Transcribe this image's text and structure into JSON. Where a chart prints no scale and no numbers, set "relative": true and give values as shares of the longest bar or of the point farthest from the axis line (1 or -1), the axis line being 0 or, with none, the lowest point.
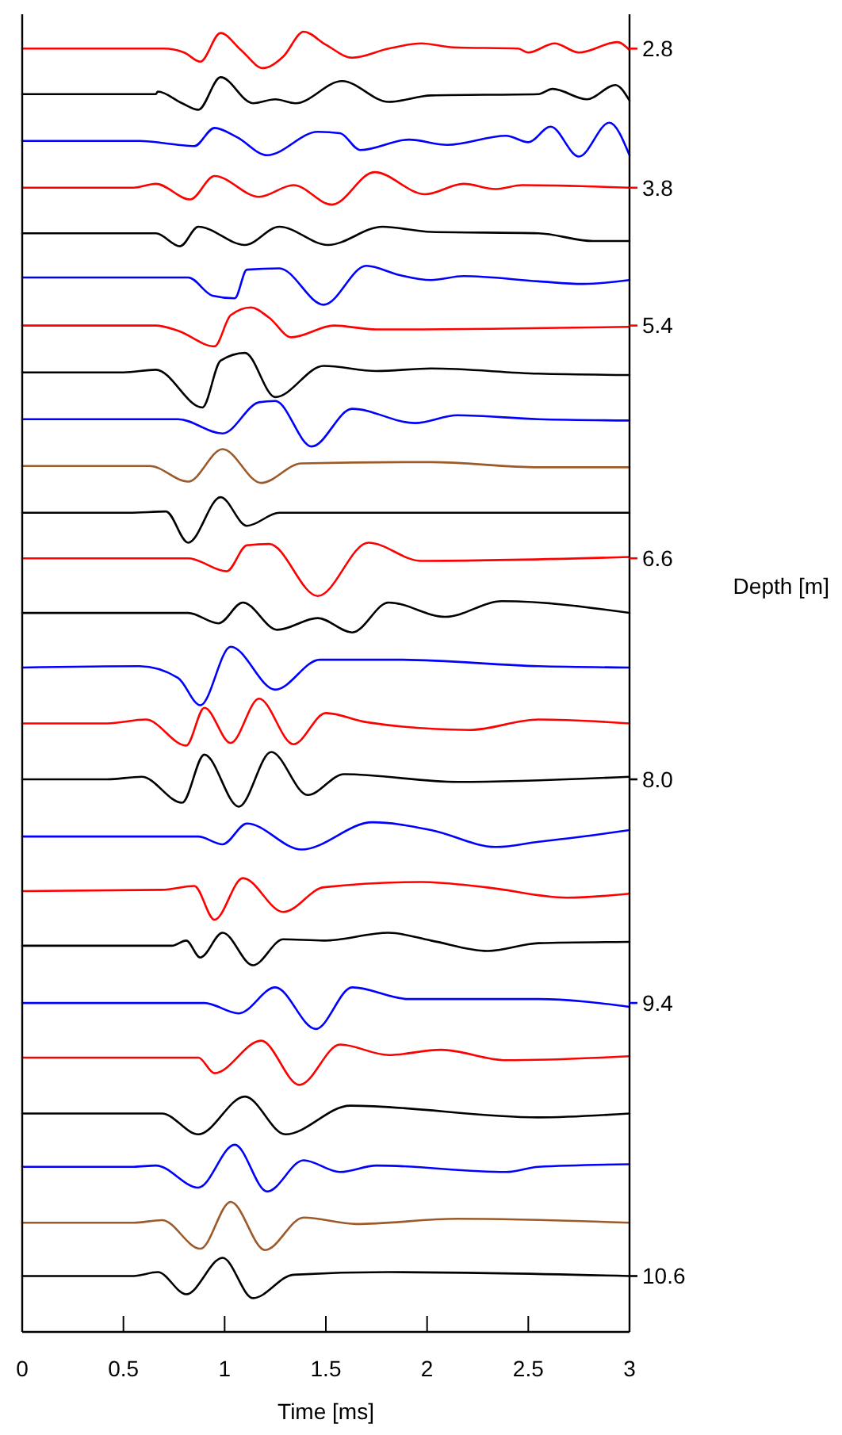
{
  "chart_data": {
    "type": "line",
    "relative": true,
    "xlabel": "Time [ms]",
    "legend_title": "Depth [m]",
    "xlim": [
      0,
      3
    ],
    "xticks": [
      0,
      0.5,
      1,
      1.5,
      2,
      2.5,
      3
    ],
    "grid": false,
    "legend": "right",
    "marker": "none",
    "line_style": "solid",
    "series": [
      {
        "name": "2.8",
        "color": "#ff0000",
        "x": [
          0,
          0.7,
          0.8,
          0.88,
          0.98,
          1.08,
          1.19,
          1.29,
          1.39,
          1.5,
          1.63,
          1.81,
          1.97,
          2.13,
          2.45,
          2.5,
          2.63,
          2.75,
          2.94,
          3.0
        ],
        "values": [
          0.987,
          0.987,
          0.984,
          0.977,
          0.999,
          0.986,
          0.972,
          0.981,
          1,
          0.99,
          0.98,
          0.987,
          0.991,
          0.988,
          0.987,
          0.984,
          0.991,
          0.984,
          0.992,
          0.986
        ]
      },
      {
        "color": "#000000",
        "x": [
          0,
          0.66,
          0.67,
          0.79,
          0.87,
          0.98,
          1.14,
          1.25,
          1.35,
          1.58,
          1.81,
          2.02,
          2.55,
          2.62,
          2.79,
          2.93,
          3.0
        ],
        "values": [
          0.952,
          0.952,
          0.954,
          0.945,
          0.94,
          0.965,
          0.945,
          0.948,
          0.945,
          0.962,
          0.946,
          0.951,
          0.952,
          0.956,
          0.948,
          0.959,
          0.947
        ]
      },
      {
        "color": "#0000ff",
        "x": [
          0,
          0.58,
          0.77,
          0.85,
          0.95,
          1.06,
          1.21,
          1.46,
          1.57,
          1.67,
          1.91,
          2.1,
          2.39,
          2.5,
          2.61,
          2.75,
          2.9,
          3.0
        ],
        "values": [
          0.916,
          0.916,
          0.913,
          0.912,
          0.926,
          0.919,
          0.905,
          0.923,
          0.922,
          0.909,
          0.917,
          0.913,
          0.92,
          0.915,
          0.927,
          0.904,
          0.93,
          0.905
        ]
      },
      {
        "name": "3.8",
        "color": "#ff0000",
        "x": [
          0,
          0.55,
          0.66,
          0.83,
          0.95,
          1.17,
          1.34,
          1.53,
          1.74,
          1.99,
          2.18,
          2.34,
          2.47,
          3.0
        ],
        "values": [
          0.88,
          0.88,
          0.883,
          0.871,
          0.889,
          0.873,
          0.882,
          0.867,
          0.892,
          0.875,
          0.883,
          0.879,
          0.882,
          0.88
        ]
      },
      {
        "color": "#000000",
        "x": [
          0,
          0.66,
          0.78,
          0.87,
          1.1,
          1.27,
          1.51,
          1.78,
          2.02,
          2.55,
          2.82,
          3.0
        ],
        "values": [
          0.845,
          0.845,
          0.835,
          0.85,
          0.836,
          0.85,
          0.836,
          0.85,
          0.846,
          0.845,
          0.839,
          0.839
        ]
      },
      {
        "color": "#0000ff",
        "x": [
          0,
          0.82,
          0.94,
          1.05,
          1.11,
          1.27,
          1.49,
          1.7,
          1.86,
          2.02,
          2.18,
          2.55,
          2.77,
          3.0
        ],
        "values": [
          0.811,
          0.811,
          0.797,
          0.795,
          0.817,
          0.818,
          0.79,
          0.82,
          0.813,
          0.809,
          0.812,
          0.808,
          0.806,
          0.809
        ]
      },
      {
        "name": "5.4",
        "color": "#ff0000",
        "x": [
          0,
          0.66,
          0.77,
          0.95,
          1.03,
          1.13,
          1.22,
          1.33,
          1.54,
          1.75,
          3.0
        ],
        "values": [
          0.774,
          0.774,
          0.77,
          0.758,
          0.782,
          0.788,
          0.78,
          0.765,
          0.774,
          0.771,
          0.773
        ]
      },
      {
        "color": "#000000",
        "x": [
          0,
          0.5,
          0.66,
          0.89,
          0.98,
          1.1,
          1.25,
          1.49,
          1.75,
          2.02,
          2.55,
          3.0
        ],
        "values": [
          0.738,
          0.738,
          0.74,
          0.711,
          0.747,
          0.753,
          0.719,
          0.743,
          0.739,
          0.741,
          0.737,
          0.736
        ]
      },
      {
        "color": "#0000ff",
        "x": [
          0,
          0.77,
          0.99,
          1.17,
          1.25,
          1.43,
          1.63,
          1.94,
          2.15,
          2.55,
          3.0
        ],
        "values": [
          0.702,
          0.702,
          0.691,
          0.715,
          0.716,
          0.681,
          0.71,
          0.699,
          0.705,
          0.702,
          0.701
        ]
      },
      {
        "color": "#9c5a2a",
        "x": [
          0,
          0.63,
          0.82,
          0.99,
          1.18,
          1.38,
          2.02,
          2.55,
          3.0
        ],
        "values": [
          0.666,
          0.666,
          0.654,
          0.679,
          0.653,
          0.668,
          0.669,
          0.665,
          0.665
        ]
      },
      {
        "color": "#000000",
        "x": [
          0,
          0.53,
          0.71,
          0.82,
          0.98,
          1.11,
          1.27,
          3.0
        ],
        "values": [
          0.63,
          0.63,
          0.631,
          0.607,
          0.642,
          0.62,
          0.63,
          0.63
        ]
      },
      {
        "name": "6.6",
        "color": "#ff0000",
        "x": [
          0,
          0.82,
          1.01,
          1.11,
          1.22,
          1.46,
          1.71,
          1.97,
          3.0
        ],
        "values": [
          0.595,
          0.595,
          0.585,
          0.605,
          0.606,
          0.566,
          0.607,
          0.593,
          0.596
        ]
      },
      {
        "color": "#000000",
        "x": [
          0,
          0.82,
          0.97,
          1.09,
          1.26,
          1.46,
          1.63,
          1.81,
          2.09,
          2.37,
          3.0
        ],
        "values": [
          0.553,
          0.553,
          0.545,
          0.561,
          0.54,
          0.549,
          0.538,
          0.561,
          0.55,
          0.562,
          0.553
        ]
      },
      {
        "color": "#0000ff",
        "x": [
          0,
          0.58,
          0.77,
          0.88,
          1.03,
          1.25,
          1.47,
          1.86,
          2.55,
          3.0
        ],
        "values": [
          0.511,
          0.512,
          0.503,
          0.482,
          0.527,
          0.494,
          0.517,
          0.517,
          0.512,
          0.511
        ]
      },
      {
        "color": "#ff0000",
        "x": [
          0,
          0.42,
          0.61,
          0.81,
          0.9,
          1.03,
          1.17,
          1.34,
          1.5,
          1.7,
          2.21,
          2.55,
          3.0
        ],
        "values": [
          0.468,
          0.468,
          0.471,
          0.451,
          0.48,
          0.453,
          0.487,
          0.452,
          0.476,
          0.469,
          0.463,
          0.471,
          0.468
        ]
      },
      {
        "name": "8.0",
        "color": "#000000",
        "x": [
          0,
          0.42,
          0.59,
          0.79,
          0.9,
          1.07,
          1.23,
          1.41,
          1.59,
          2.15,
          3.0
        ],
        "values": [
          0.425,
          0.425,
          0.427,
          0.407,
          0.444,
          0.404,
          0.446,
          0.413,
          0.429,
          0.423,
          0.427
        ]
      },
      {
        "color": "#0000ff",
        "x": [
          0,
          0.87,
          0.99,
          1.11,
          1.38,
          1.73,
          2.02,
          2.34,
          2.55,
          2.82,
          3.0
        ],
        "values": [
          0.381,
          0.381,
          0.375,
          0.391,
          0.371,
          0.392,
          0.386,
          0.373,
          0.377,
          0.382,
          0.386
        ]
      },
      {
        "color": "#ff0000",
        "x": [
          0,
          0.69,
          0.85,
          0.95,
          1.09,
          1.29,
          1.49,
          1.97,
          2.29,
          2.69,
          3.0
        ],
        "values": [
          0.339,
          0.34,
          0.343,
          0.317,
          0.349,
          0.323,
          0.342,
          0.346,
          0.342,
          0.334,
          0.337
        ]
      },
      {
        "color": "#000000",
        "x": [
          0,
          0.74,
          0.81,
          0.88,
          0.99,
          1.14,
          1.29,
          1.49,
          1.81,
          2.02,
          2.3,
          2.55,
          3.0
        ],
        "values": [
          0.297,
          0.297,
          0.301,
          0.288,
          0.307,
          0.282,
          0.302,
          0.301,
          0.307,
          0.301,
          0.293,
          0.299,
          0.3
        ]
      },
      {
        "name": "9.4",
        "color": "#0000ff",
        "x": [
          0,
          0.9,
          1.07,
          1.25,
          1.45,
          1.63,
          1.91,
          2.55,
          3.0
        ],
        "values": [
          0.253,
          0.253,
          0.245,
          0.265,
          0.233,
          0.265,
          0.256,
          0.256,
          0.25
        ]
      },
      {
        "color": "#ff0000",
        "x": [
          0,
          0.87,
          0.95,
          1.18,
          1.37,
          1.57,
          1.81,
          2.07,
          2.39,
          3.0
        ],
        "values": [
          0.211,
          0.211,
          0.199,
          0.224,
          0.19,
          0.221,
          0.213,
          0.217,
          0.209,
          0.212
        ]
      },
      {
        "color": "#000000",
        "x": [
          0,
          0.69,
          0.87,
          1.1,
          1.3,
          1.62,
          2.55,
          3.0
        ],
        "values": [
          0.168,
          0.168,
          0.152,
          0.181,
          0.152,
          0.174,
          0.165,
          0.168
        ]
      },
      {
        "color": "#0000ff",
        "x": [
          0,
          0.55,
          0.66,
          0.87,
          1.05,
          1.21,
          1.39,
          1.57,
          1.75,
          2.39,
          2.55,
          3.0
        ],
        "values": [
          0.127,
          0.127,
          0.128,
          0.111,
          0.144,
          0.108,
          0.132,
          0.123,
          0.128,
          0.123,
          0.127,
          0.129
        ]
      },
      {
        "color": "#9c5a2a",
        "x": [
          0,
          0.55,
          0.69,
          0.88,
          1.03,
          1.2,
          1.39,
          1.65,
          2.15,
          3.0
        ],
        "values": [
          0.084,
          0.084,
          0.086,
          0.064,
          0.1,
          0.063,
          0.088,
          0.083,
          0.087,
          0.084
        ]
      },
      {
        "name": "10.6",
        "color": "#000000",
        "x": [
          0,
          0.55,
          0.67,
          0.81,
          0.99,
          1.14,
          1.34,
          1.81,
          3.0
        ],
        "values": [
          0.043,
          0.043,
          0.046,
          0.029,
          0.057,
          0.026,
          0.044,
          0.046,
          0.043
        ]
      }
    ]
  }
}
